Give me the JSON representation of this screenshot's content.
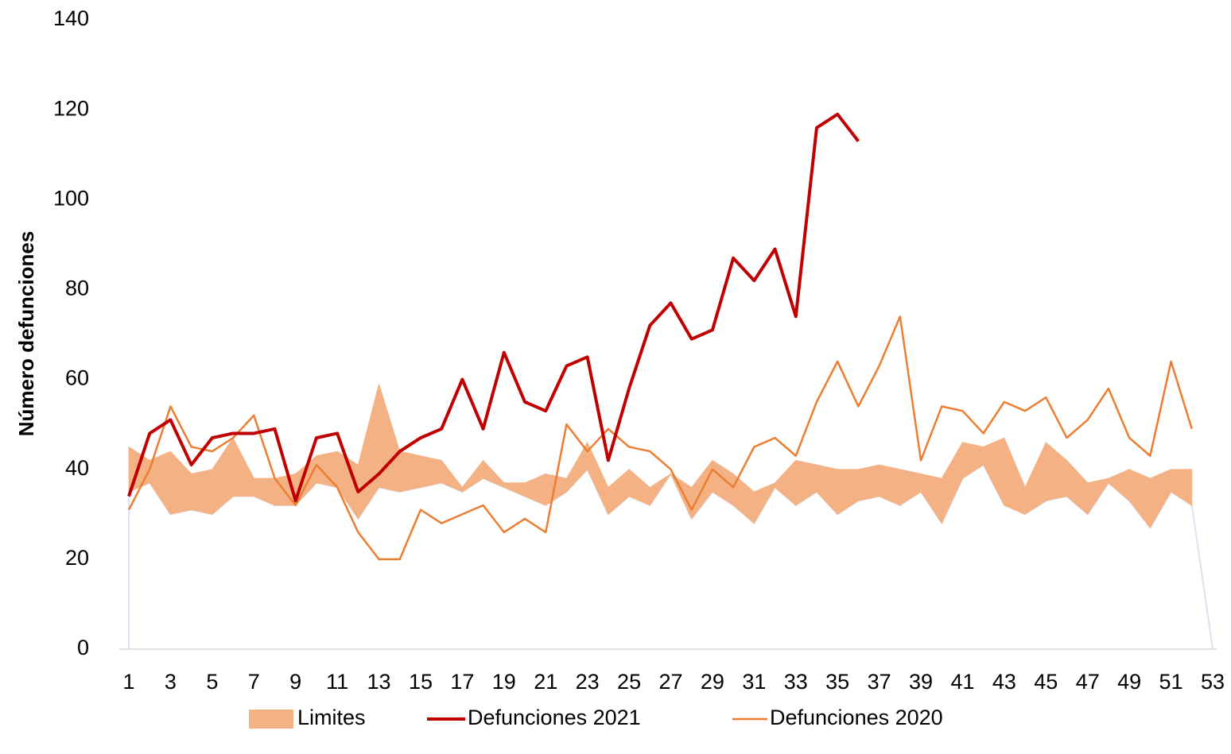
{
  "chart_data": {
    "type": "line",
    "ylabel": "Número defunciones",
    "x": [
      1,
      2,
      3,
      4,
      5,
      6,
      7,
      8,
      9,
      10,
      11,
      12,
      13,
      14,
      15,
      16,
      17,
      18,
      19,
      20,
      21,
      22,
      23,
      24,
      25,
      26,
      27,
      28,
      29,
      30,
      31,
      32,
      33,
      34,
      35,
      36,
      37,
      38,
      39,
      40,
      41,
      42,
      43,
      44,
      45,
      46,
      47,
      48,
      49,
      50,
      51,
      52,
      53
    ],
    "xlim": [
      1,
      53
    ],
    "xticks": [
      1,
      3,
      5,
      7,
      9,
      11,
      13,
      15,
      17,
      19,
      21,
      23,
      25,
      27,
      29,
      31,
      33,
      35,
      37,
      39,
      41,
      43,
      45,
      47,
      49,
      51,
      53
    ],
    "ylim": [
      0,
      140
    ],
    "yticks": [
      0,
      20,
      40,
      60,
      80,
      100,
      120,
      140
    ],
    "grid": false,
    "legend": "bottom",
    "band": {
      "name": "Limites",
      "color": "#f4b183",
      "edge_color": "#dae3f3",
      "upper": [
        45,
        42,
        44,
        39,
        40,
        47,
        38,
        38,
        39,
        43,
        44,
        41,
        59,
        44,
        43,
        42,
        36,
        42,
        37,
        37,
        39,
        38,
        46,
        36,
        40,
        36,
        39,
        36,
        42,
        39,
        35,
        37,
        42,
        41,
        40,
        40,
        41,
        40,
        39,
        38,
        46,
        45,
        47,
        36,
        46,
        42,
        37,
        38,
        40,
        38,
        40,
        40,
        null
      ],
      "lower": [
        35,
        37,
        30,
        31,
        30,
        34,
        34,
        32,
        32,
        37,
        36,
        29,
        36,
        35,
        36,
        37,
        35,
        38,
        36,
        34,
        32,
        35,
        40,
        30,
        34,
        32,
        39,
        29,
        35,
        32,
        28,
        36,
        32,
        35,
        30,
        33,
        34,
        32,
        35,
        28,
        38,
        41,
        32,
        30,
        33,
        34,
        30,
        37,
        33,
        27,
        35,
        32,
        0
      ]
    },
    "series": [
      {
        "name": "Defunciones 2021",
        "color": "#c00000",
        "width": 4,
        "values": [
          34,
          48,
          51,
          41,
          47,
          48,
          48,
          49,
          33,
          47,
          48,
          35,
          39,
          44,
          47,
          49,
          60,
          49,
          66,
          55,
          53,
          63,
          65,
          42,
          58,
          72,
          77,
          69,
          71,
          87,
          82,
          89,
          74,
          116,
          119,
          113,
          null,
          null,
          null,
          null,
          null,
          null,
          null,
          null,
          null,
          null,
          null,
          null,
          null,
          null,
          null,
          null,
          null
        ]
      },
      {
        "name": "Defunciones 2020",
        "color": "#ed7d31",
        "width": 2.5,
        "values": [
          31,
          40,
          54,
          45,
          44,
          47,
          52,
          38,
          32,
          41,
          36,
          26,
          20,
          20,
          31,
          28,
          30,
          32,
          26,
          29,
          26,
          50,
          44,
          49,
          45,
          44,
          40,
          31,
          40,
          36,
          45,
          47,
          43,
          55,
          64,
          54,
          63,
          74,
          42,
          54,
          53,
          48,
          55,
          53,
          56,
          47,
          51,
          58,
          47,
          43,
          64,
          49,
          null
        ]
      }
    ]
  }
}
